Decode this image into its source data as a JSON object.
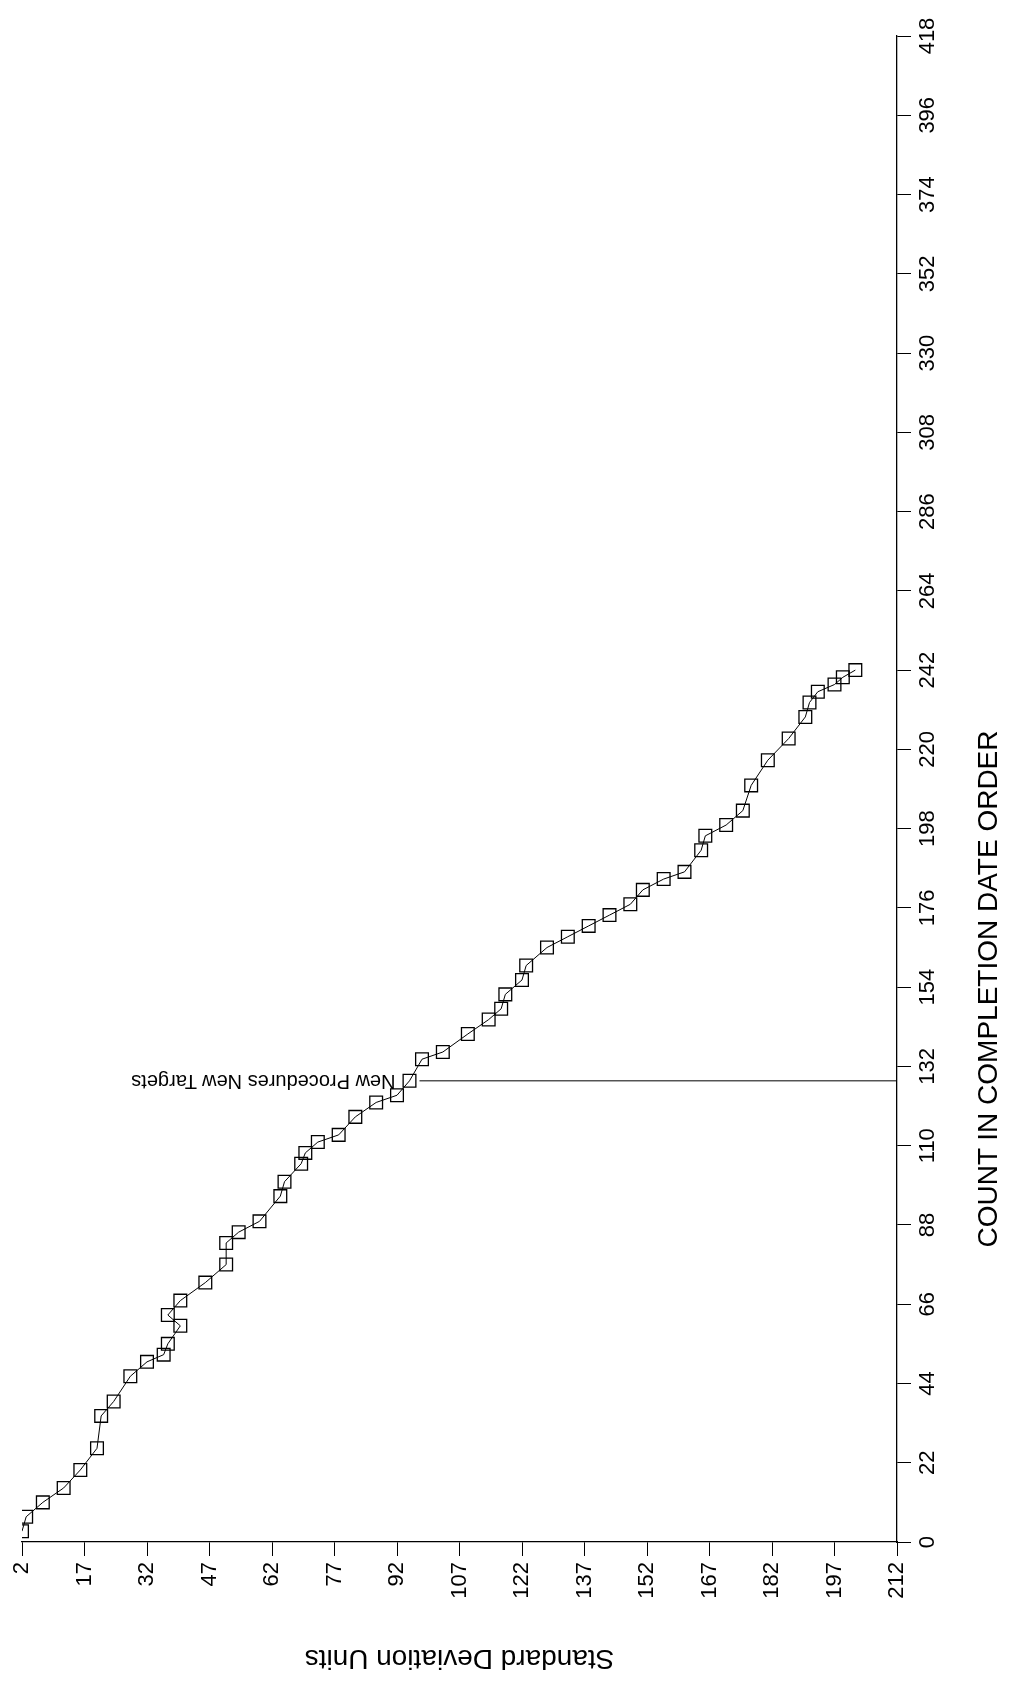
{
  "chart_data": {
    "type": "line",
    "xlabel": "Standard Deviation Units",
    "ylabel": "COUNT IN COMPLETION DATE ORDER",
    "x": [
      2,
      3,
      7,
      12,
      16,
      20,
      21,
      24,
      28,
      32,
      36,
      37,
      40,
      37,
      40,
      46,
      51,
      51,
      54,
      59,
      64,
      65,
      69,
      70,
      73,
      78,
      82,
      87,
      92,
      95,
      98,
      103,
      109,
      114,
      117,
      118,
      122,
      123,
      128,
      133,
      138,
      143,
      148,
      151,
      156,
      161,
      165,
      166,
      171,
      175,
      177,
      181,
      186,
      190,
      191,
      193,
      197,
      199,
      202
    ],
    "values": [
      3,
      7,
      11,
      15,
      20,
      26,
      35,
      39,
      46,
      50,
      52,
      55,
      60,
      63,
      67,
      72,
      77,
      83,
      86,
      89,
      96,
      100,
      105,
      108,
      111,
      113,
      118,
      122,
      124,
      128,
      134,
      136,
      141,
      145,
      148,
      152,
      156,
      160,
      165,
      168,
      171,
      174,
      177,
      181,
      184,
      186,
      192,
      196,
      199,
      203,
      210,
      217,
      223,
      229,
      233,
      236,
      238,
      240,
      242
    ],
    "color": "#000000",
    "marker": "square",
    "line_style": "solid",
    "xlim": [
      2,
      212
    ],
    "xticks": [
      2,
      17,
      32,
      47,
      62,
      77,
      92,
      107,
      122,
      137,
      152,
      167,
      182,
      197,
      212
    ],
    "ylim": [
      0,
      418
    ],
    "yticks": [
      0,
      22,
      44,
      66,
      88,
      110,
      132,
      154,
      176,
      198,
      220,
      242,
      264,
      286,
      308,
      330,
      352,
      374,
      396,
      418
    ],
    "ref_lines": [
      {
        "axis": "y",
        "value": 128,
        "label": "New Procedures New Targets"
      }
    ]
  }
}
